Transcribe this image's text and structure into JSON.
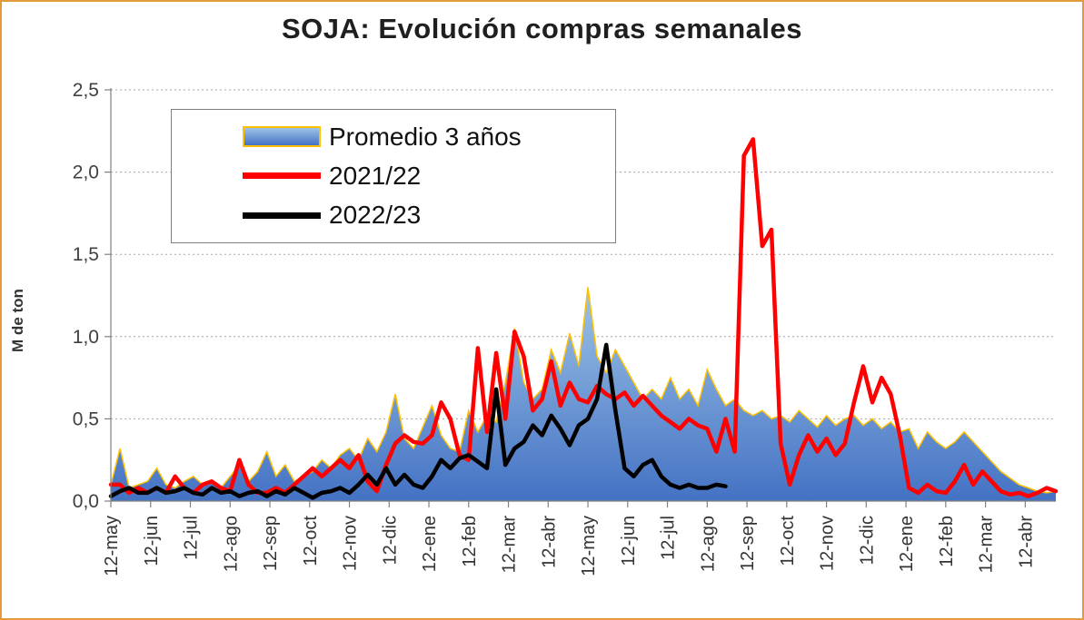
{
  "frame": {
    "border_color": "#E39A3B",
    "background": "#FFFFFF"
  },
  "chart_data": {
    "type": "area",
    "title": "SOJA: Evolución compras semanales",
    "ylabel": "M de ton",
    "ylim": [
      0,
      2.5
    ],
    "y_tick_step": 0.5,
    "y_tick_labels": [
      "0,0",
      "0,5",
      "1,0",
      "1,5",
      "2,0",
      "2,5"
    ],
    "x_tick_labels": [
      "12-may",
      "12-jun",
      "12-jul",
      "12-ago",
      "12-sep",
      "12-oct",
      "12-nov",
      "12-dic",
      "12-ene",
      "12-feb",
      "12-mar",
      "12-abr",
      "12-may",
      "12-jun",
      "12-jul",
      "12-ago",
      "12-sep",
      "12-oct",
      "12-nov",
      "12-dic",
      "12-ene",
      "12-feb",
      "12-mar",
      "12-abr"
    ],
    "x_unit": "weekly data points spanning 24 months",
    "grid": "horizontal dotted gray lines",
    "legend_position": "top-left inside plot",
    "series": [
      {
        "name": "Promedio 3 años",
        "type": "area",
        "fill_top": "#9DC3E6",
        "fill_bottom": "#4472C4",
        "stroke": "#FFC000",
        "stroke_width": 1.5,
        "values": [
          0.1,
          0.32,
          0.08,
          0.1,
          0.12,
          0.2,
          0.1,
          0.08,
          0.12,
          0.15,
          0.1,
          0.12,
          0.08,
          0.15,
          0.22,
          0.12,
          0.18,
          0.3,
          0.15,
          0.22,
          0.12,
          0.15,
          0.18,
          0.25,
          0.2,
          0.28,
          0.32,
          0.25,
          0.38,
          0.3,
          0.42,
          0.65,
          0.38,
          0.32,
          0.45,
          0.58,
          0.4,
          0.32,
          0.3,
          0.55,
          0.42,
          0.52,
          0.48,
          0.72,
          1.05,
          0.72,
          0.62,
          0.68,
          0.92,
          0.78,
          1.02,
          0.82,
          1.3,
          0.88,
          0.78,
          0.92,
          0.82,
          0.72,
          0.62,
          0.68,
          0.62,
          0.75,
          0.62,
          0.68,
          0.58,
          0.8,
          0.68,
          0.58,
          0.62,
          0.55,
          0.52,
          0.55,
          0.5,
          0.52,
          0.48,
          0.55,
          0.5,
          0.45,
          0.52,
          0.46,
          0.5,
          0.52,
          0.46,
          0.5,
          0.44,
          0.48,
          0.42,
          0.44,
          0.32,
          0.42,
          0.36,
          0.32,
          0.36,
          0.42,
          0.36,
          0.3,
          0.24,
          0.18,
          0.14,
          0.1,
          0.08,
          0.06,
          0.05,
          0.06
        ]
      },
      {
        "name": "2021/22",
        "type": "line",
        "stroke": "#FF0000",
        "stroke_width": 4.5,
        "values": [
          0.1,
          0.1,
          0.05,
          0.08,
          0.05,
          0.08,
          0.05,
          0.15,
          0.08,
          0.05,
          0.1,
          0.12,
          0.08,
          0.06,
          0.25,
          0.1,
          0.05,
          0.05,
          0.08,
          0.05,
          0.1,
          0.15,
          0.2,
          0.15,
          0.2,
          0.25,
          0.2,
          0.28,
          0.12,
          0.06,
          0.22,
          0.35,
          0.4,
          0.36,
          0.35,
          0.4,
          0.6,
          0.5,
          0.28,
          0.25,
          0.93,
          0.42,
          0.9,
          0.5,
          1.03,
          0.88,
          0.55,
          0.62,
          0.85,
          0.58,
          0.72,
          0.62,
          0.6,
          0.7,
          0.65,
          0.62,
          0.66,
          0.58,
          0.64,
          0.58,
          0.52,
          0.48,
          0.44,
          0.5,
          0.46,
          0.44,
          0.3,
          0.5,
          0.3,
          2.1,
          2.2,
          1.55,
          1.65,
          0.35,
          0.1,
          0.28,
          0.4,
          0.3,
          0.38,
          0.28,
          0.35,
          0.6,
          0.82,
          0.6,
          0.75,
          0.65,
          0.4,
          0.08,
          0.05,
          0.1,
          0.06,
          0.05,
          0.12,
          0.22,
          0.1,
          0.18,
          0.12,
          0.06,
          0.04,
          0.05,
          0.03,
          0.05,
          0.08,
          0.06
        ]
      },
      {
        "name": "2022/23",
        "type": "line",
        "stroke": "#000000",
        "stroke_width": 4.5,
        "values": [
          0.03,
          0.06,
          0.08,
          0.05,
          0.05,
          0.08,
          0.05,
          0.06,
          0.08,
          0.05,
          0.04,
          0.08,
          0.05,
          0.06,
          0.03,
          0.05,
          0.06,
          0.03,
          0.06,
          0.04,
          0.08,
          0.05,
          0.02,
          0.05,
          0.06,
          0.08,
          0.05,
          0.1,
          0.16,
          0.1,
          0.2,
          0.1,
          0.16,
          0.1,
          0.08,
          0.15,
          0.25,
          0.2,
          0.26,
          0.28,
          0.24,
          0.2,
          0.68,
          0.22,
          0.32,
          0.36,
          0.46,
          0.4,
          0.52,
          0.44,
          0.34,
          0.46,
          0.5,
          0.62,
          0.95,
          0.55,
          0.2,
          0.15,
          0.22,
          0.25,
          0.15,
          0.1,
          0.08,
          0.1,
          0.08,
          0.08,
          0.1,
          0.09,
          null,
          null,
          null,
          null,
          null,
          null,
          null,
          null,
          null,
          null,
          null,
          null,
          null,
          null,
          null,
          null,
          null,
          null,
          null,
          null,
          null,
          null,
          null,
          null,
          null,
          null,
          null,
          null,
          null,
          null,
          null,
          null,
          null,
          null,
          null,
          null
        ]
      }
    ]
  }
}
